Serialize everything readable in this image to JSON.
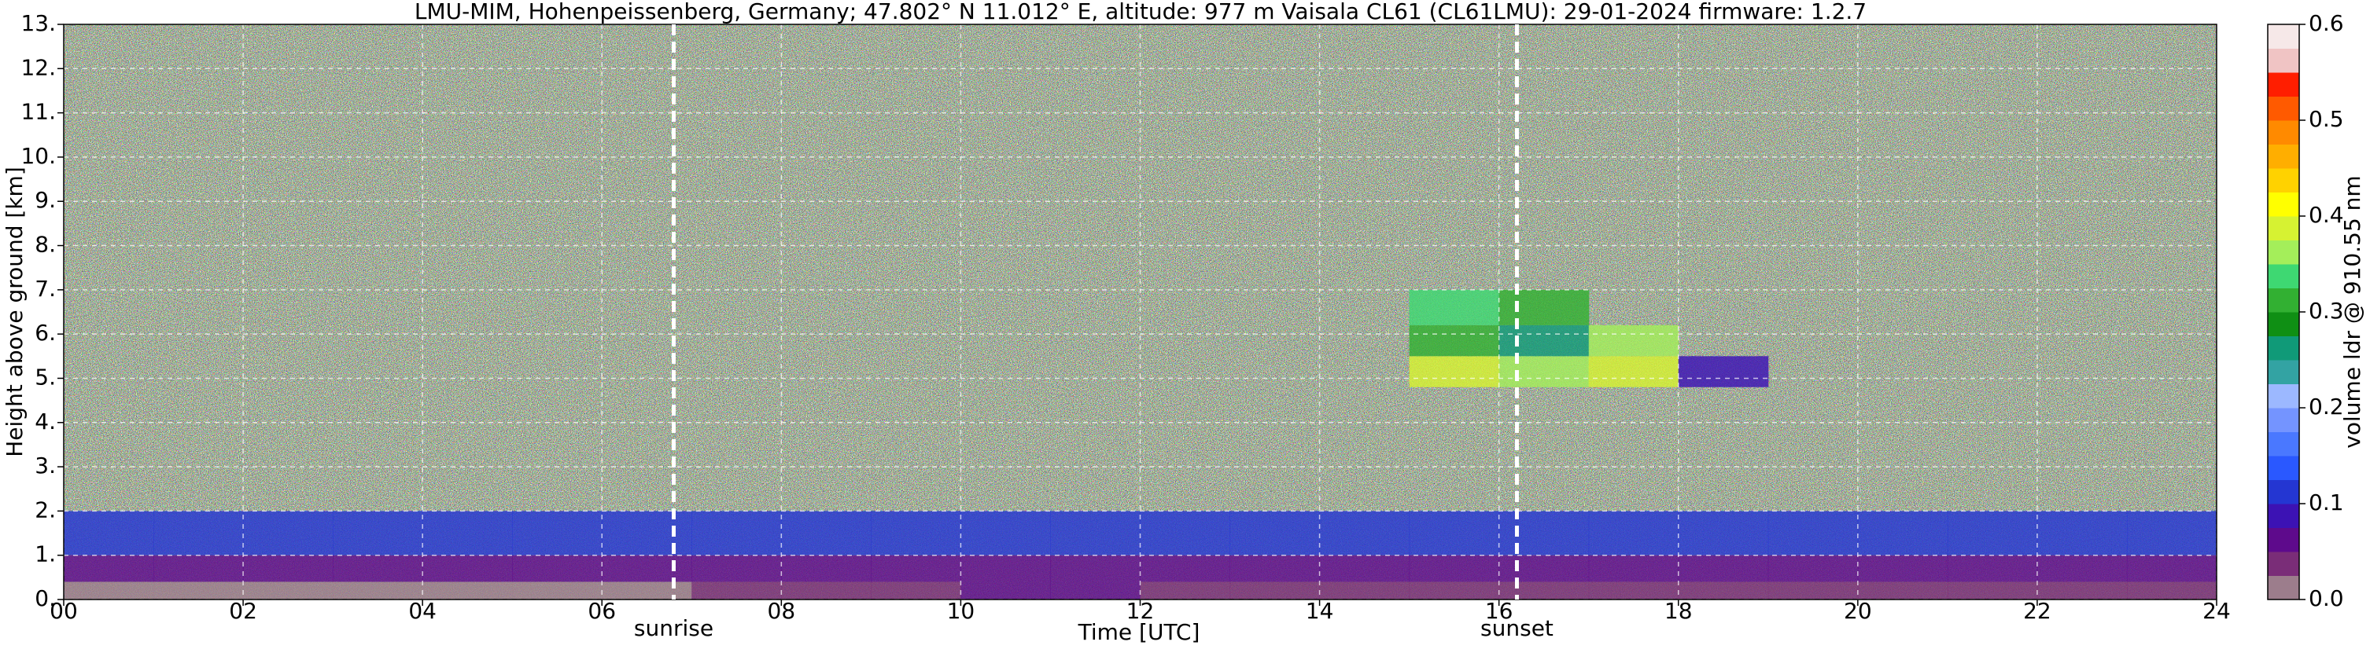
{
  "chart_data": {
    "type": "heatmap",
    "title": "LMU-MIM, Hohenpeissenberg, Germany; 47.802° N 11.012° E, altitude: 977 m    Vaisala CL61 (CL61LMU): 29-01-2024    firmware: 1.2.7",
    "x_label": "Time [UTC]",
    "y_label": "Height above ground [km]",
    "colorbar_label": "volume ldr @ 910.55 nm",
    "x_edges": [
      0,
      1,
      2,
      3,
      4,
      5,
      6,
      7,
      8,
      9,
      10,
      11,
      12,
      13,
      14,
      15,
      16,
      17,
      18,
      19,
      20,
      21,
      22,
      23,
      24
    ],
    "y_edges": [
      0,
      0.4,
      1,
      2,
      4.8,
      5.5,
      6.2,
      7,
      13
    ],
    "values": [
      [
        0.02,
        0.02,
        0.02,
        0.02,
        0.02,
        0.02,
        0.02,
        0.03,
        0.03,
        0.03,
        0.06,
        0.06,
        0.03,
        0.03,
        0.03,
        0.03,
        0.03,
        0.03,
        0.03,
        0.03,
        0.03,
        0.03,
        0.03,
        0.03
      ],
      [
        0.07,
        0.07,
        0.07,
        0.07,
        0.07,
        0.07,
        0.07,
        0.07,
        0.07,
        0.07,
        0.07,
        0.07,
        0.07,
        0.07,
        0.07,
        0.07,
        0.07,
        0.07,
        0.07,
        0.07,
        0.07,
        0.07,
        0.07,
        0.07
      ],
      [
        0.12,
        0.12,
        0.12,
        0.12,
        0.12,
        0.12,
        0.12,
        0.12,
        0.12,
        0.12,
        0.12,
        0.12,
        0.12,
        0.12,
        0.12,
        0.12,
        0.12,
        0.12,
        0.12,
        0.12,
        0.12,
        0.12,
        0.12,
        0.12
      ],
      [
        null,
        null,
        null,
        null,
        null,
        null,
        null,
        null,
        null,
        null,
        null,
        null,
        null,
        null,
        null,
        null,
        null,
        null,
        null,
        null,
        null,
        null,
        null,
        null
      ],
      [
        null,
        null,
        null,
        null,
        null,
        null,
        null,
        null,
        null,
        null,
        null,
        null,
        null,
        null,
        null,
        0.38,
        0.36,
        0.38,
        0.08,
        null,
        null,
        null,
        null,
        null
      ],
      [
        null,
        null,
        null,
        null,
        null,
        null,
        null,
        null,
        null,
        null,
        null,
        null,
        null,
        null,
        null,
        0.3,
        0.25,
        0.35,
        null,
        null,
        null,
        null,
        null,
        null
      ],
      [
        null,
        null,
        null,
        null,
        null,
        null,
        null,
        null,
        null,
        null,
        null,
        null,
        null,
        null,
        null,
        0.33,
        0.3,
        null,
        null,
        null,
        null,
        null,
        null,
        null
      ],
      [
        null,
        null,
        null,
        null,
        null,
        null,
        null,
        null,
        null,
        null,
        null,
        null,
        null,
        null,
        null,
        null,
        null,
        null,
        null,
        null,
        null,
        null,
        null,
        null
      ]
    ],
    "xlim": [
      0,
      24
    ],
    "xticks": [
      {
        "value": 0,
        "label": "00"
      },
      {
        "value": 2,
        "label": "02"
      },
      {
        "value": 4,
        "label": "04"
      },
      {
        "value": 6,
        "label": "06"
      },
      {
        "value": 8,
        "label": "08"
      },
      10,
      12,
      14,
      16,
      18,
      20,
      22,
      24
    ],
    "ylim": [
      0,
      13
    ],
    "yticks": [
      {
        "value": 0,
        "label": "0."
      },
      {
        "value": 1,
        "label": "1."
      },
      {
        "value": 2,
        "label": "2."
      },
      {
        "value": 3,
        "label": "3."
      },
      {
        "value": 4,
        "label": "4."
      },
      {
        "value": 5,
        "label": "5."
      },
      {
        "value": 6,
        "label": "6."
      },
      {
        "value": 7,
        "label": "7."
      },
      {
        "value": 8,
        "label": "8."
      },
      {
        "value": 9,
        "label": "9."
      },
      {
        "value": 10,
        "label": "10."
      },
      {
        "value": 11,
        "label": "11."
      },
      {
        "value": 12,
        "label": "12."
      },
      {
        "value": 13,
        "label": "13."
      }
    ],
    "clim": [
      0,
      0.6
    ],
    "cticks": [
      {
        "value": 0,
        "label": "0.0"
      },
      0.1,
      0.2,
      0.3,
      0.4,
      0.5,
      0.6
    ],
    "colorscale": [
      "#9c7d8c",
      "#7a2d78",
      "#5e0a8c",
      "#3c12b4",
      "#2436d2",
      "#2a58ff",
      "#4a78ff",
      "#7494ff",
      "#9cb8ff",
      "#33a3a3",
      "#109a78",
      "#0f8f14",
      "#32b032",
      "#3ed872",
      "#a4ee5a",
      "#d6f232",
      "#ffff00",
      "#ffd200",
      "#ffae00",
      "#ff8a00",
      "#ff5a00",
      "#ff1e00",
      "#f0c4c4",
      "#f6e8e8"
    ],
    "grid": true,
    "annotations": [
      {
        "text": "sunrise",
        "x": 6.8
      },
      {
        "text": "sunset",
        "x": 16.2
      }
    ]
  }
}
